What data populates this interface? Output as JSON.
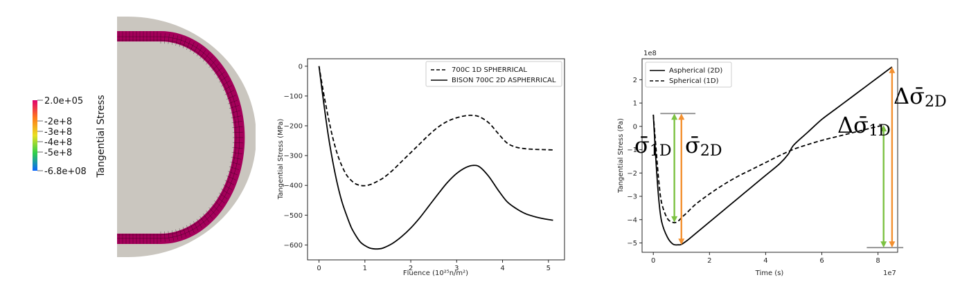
{
  "colorbar": {
    "title": "Tangential Stress",
    "ticks": [
      "2.0e+05",
      "-2e+8",
      "-3e+8",
      "-4e+8",
      "-5e+8",
      "-6.8e+08"
    ],
    "tick_values": [
      200000,
      -200000000,
      -300000000,
      -400000000,
      -500000000,
      -680000000
    ],
    "range": [
      -680000000,
      200000
    ],
    "colors": [
      "#e0006f",
      "#ff7a1a",
      "#e8e020",
      "#2ecf4a",
      "#0a66ff"
    ]
  },
  "mesh_image": {
    "fill_color": "#cac6bf",
    "layer_color": "#a4005a",
    "grid_color": "#2a0018"
  },
  "chart_data": [
    {
      "type": "line",
      "xlabel": "Fluence (10²⁵n/m²)",
      "ylabel": "Tangential Stress (MPa)",
      "xlim": [
        -0.25,
        5.35
      ],
      "ylim": [
        -650,
        25
      ],
      "xticks": [
        "0",
        "1",
        "2",
        "3",
        "4",
        "5"
      ],
      "xtick_values": [
        0,
        1,
        2,
        3,
        4,
        5
      ],
      "yticks": [
        "0",
        "−100",
        "−200",
        "−300",
        "−400",
        "−500",
        "−600"
      ],
      "ytick_values": [
        0,
        -100,
        -200,
        -300,
        -400,
        -500,
        -600
      ],
      "legend_position": "top-right",
      "series": [
        {
          "name": "700C 1D SPHERRICAL",
          "style": "dashed",
          "x": [
            0,
            0.1,
            0.2,
            0.3,
            0.4,
            0.5,
            0.6,
            0.7,
            0.8,
            0.9,
            1.0,
            1.1,
            1.2,
            1.4,
            1.6,
            1.8,
            2.0,
            2.2,
            2.4,
            2.6,
            2.8,
            3.0,
            3.2,
            3.35,
            3.5,
            3.7,
            3.9,
            4.1,
            4.3,
            4.5,
            4.7,
            4.9,
            5.1
          ],
          "y": [
            0,
            -90,
            -170,
            -240,
            -295,
            -335,
            -365,
            -383,
            -395,
            -400,
            -401,
            -398,
            -392,
            -375,
            -350,
            -320,
            -290,
            -260,
            -230,
            -204,
            -185,
            -173,
            -166,
            -165,
            -170,
            -190,
            -225,
            -258,
            -272,
            -277,
            -279,
            -280,
            -281
          ]
        },
        {
          "name": "BISON 700C 2D ASPHERRICAL",
          "style": "solid",
          "x": [
            0,
            0.1,
            0.2,
            0.3,
            0.4,
            0.5,
            0.6,
            0.7,
            0.8,
            0.9,
            1.0,
            1.1,
            1.2,
            1.3,
            1.4,
            1.6,
            1.8,
            2.0,
            2.2,
            2.4,
            2.6,
            2.8,
            3.0,
            3.2,
            3.35,
            3.5,
            3.7,
            3.9,
            4.1,
            4.3,
            4.5,
            4.7,
            4.9,
            5.1
          ],
          "y": [
            0,
            -120,
            -230,
            -320,
            -395,
            -455,
            -500,
            -540,
            -568,
            -590,
            -602,
            -610,
            -613,
            -613,
            -610,
            -595,
            -572,
            -543,
            -508,
            -468,
            -428,
            -390,
            -360,
            -340,
            -333,
            -338,
            -370,
            -415,
            -455,
            -478,
            -495,
            -505,
            -512,
            -517
          ]
        }
      ]
    },
    {
      "type": "line",
      "xlabel": "Time (s)",
      "ylabel": "Tangential Stress (Pa)",
      "y_offset_label": "1e8",
      "x_offset_label": "1e7",
      "xlim": [
        -0.4,
        8.7
      ],
      "ylim": [
        -5.4,
        2.9
      ],
      "xticks": [
        "0",
        "2",
        "4",
        "6",
        "8"
      ],
      "xtick_values": [
        0,
        2,
        4,
        6,
        8
      ],
      "yticks": [
        "−5",
        "−4",
        "−3",
        "−2",
        "−1",
        "0",
        "1",
        "2"
      ],
      "ytick_values": [
        -5,
        -4,
        -3,
        -2,
        -1,
        0,
        1,
        2
      ],
      "legend_position": "top-left",
      "series": [
        {
          "name": "Aspherical (2D)",
          "style": "solid",
          "x": [
            0,
            0.1,
            0.2,
            0.3,
            0.5,
            0.7,
            0.9,
            1.0,
            1.2,
            1.4,
            1.6,
            1.8,
            2.0,
            2.5,
            3.0,
            3.5,
            4.0,
            4.5,
            4.8,
            5.0,
            5.5,
            6.0,
            6.5,
            7.0,
            7.5,
            8.0,
            8.5
          ],
          "y": [
            0.5,
            -1.6,
            -3.2,
            -4.1,
            -4.75,
            -5.05,
            -5.08,
            -5.06,
            -4.9,
            -4.7,
            -4.5,
            -4.3,
            -4.1,
            -3.6,
            -3.1,
            -2.6,
            -2.1,
            -1.6,
            -1.2,
            -0.8,
            -0.25,
            0.3,
            0.75,
            1.2,
            1.65,
            2.1,
            2.55
          ]
        },
        {
          "name": "Spherical (1D)",
          "style": "dashed",
          "x": [
            0,
            0.1,
            0.2,
            0.3,
            0.5,
            0.7,
            0.8,
            0.9,
            1.0,
            1.2,
            1.5,
            2.0,
            2.5,
            3.0,
            3.5,
            4.0,
            4.5,
            5.0,
            5.5,
            6.0,
            6.5,
            7.0,
            7.5,
            8.0,
            8.2
          ],
          "y": [
            0.5,
            -1.0,
            -2.4,
            -3.3,
            -3.95,
            -4.12,
            -4.12,
            -4.05,
            -3.92,
            -3.7,
            -3.35,
            -2.9,
            -2.5,
            -2.15,
            -1.85,
            -1.55,
            -1.25,
            -0.98,
            -0.78,
            -0.6,
            -0.45,
            -0.3,
            -0.15,
            0.0,
            0.05
          ]
        }
      ],
      "annotations": [
        {
          "label": "σ̄",
          "sub": "1D",
          "kind": "green_arrow_left",
          "x": 0.75,
          "y_top": 0.55,
          "y_bottom": -4.12
        },
        {
          "label": "σ̄",
          "sub": "2D",
          "kind": "orange_arrow_left",
          "x": 1.0,
          "y_top": 0.55,
          "y_bottom": -5.08
        },
        {
          "label": "Δσ̄",
          "sub": "1D",
          "kind": "green_arrow_right",
          "x": 8.2,
          "y_top": 0.05,
          "y_bottom": -5.2
        },
        {
          "label": "Δσ̄",
          "sub": "2D",
          "kind": "orange_arrow_right",
          "x": 8.5,
          "y_top": 2.55,
          "y_bottom": -5.2
        }
      ],
      "reference_lines": [
        {
          "y": 0.55,
          "x_from": 0.25,
          "x_to": 1.5
        },
        {
          "y": -5.2,
          "x_from": 7.6,
          "x_to": 8.9
        }
      ],
      "arrow_colors": {
        "green": "#7cc242",
        "orange": "#f39030"
      }
    }
  ]
}
